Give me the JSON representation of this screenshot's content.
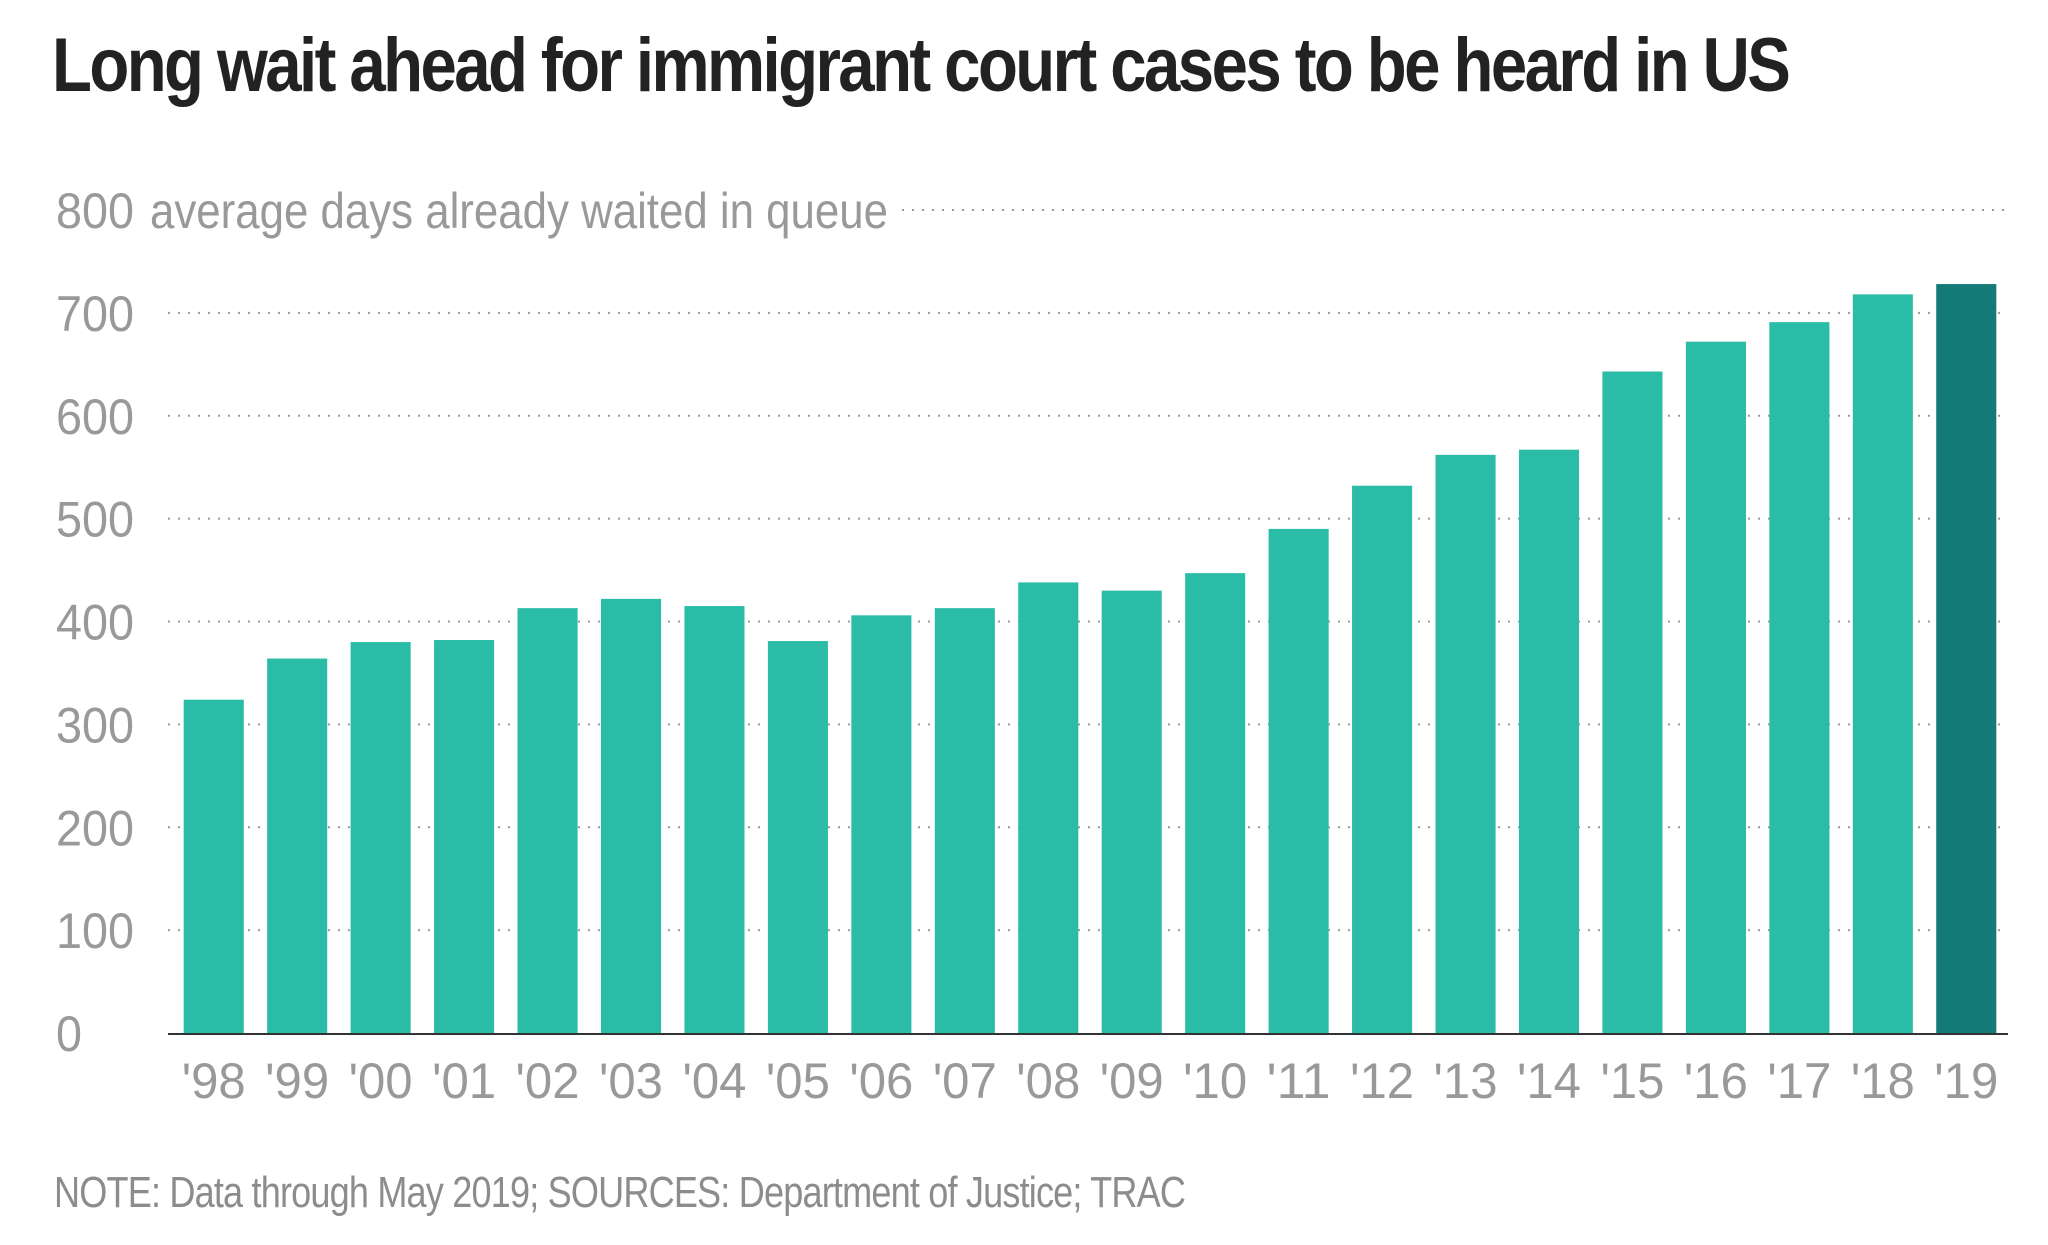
{
  "title": "Long wait ahead for immigrant court cases to be heard in US",
  "note": "NOTE: Data through May 2019; SOURCES: Department of Justice; TRAC",
  "colors": {
    "bar": "#2bbca8",
    "highlight": "#147a78",
    "text": "#222222",
    "muted": "#999999"
  },
  "chart_data": {
    "type": "bar",
    "title": "Long wait ahead for immigrant court cases to be heard in US",
    "ylabel": "average days already waited in queue",
    "xlabel": "",
    "ylim": [
      0,
      800
    ],
    "yticks": [
      0,
      100,
      200,
      300,
      400,
      500,
      600,
      700,
      800
    ],
    "grid": true,
    "categories": [
      "'98",
      "'99",
      "'00",
      "'01",
      "'02",
      "'03",
      "'04",
      "'05",
      "'06",
      "'07",
      "'08",
      "'09",
      "'10",
      "'11",
      "'12",
      "'13",
      "'14",
      "'15",
      "'16",
      "'17",
      "'18",
      "'19"
    ],
    "values": [
      324,
      364,
      380,
      382,
      413,
      422,
      415,
      381,
      406,
      413,
      438,
      430,
      447,
      490,
      532,
      562,
      567,
      643,
      672,
      691,
      718,
      728
    ],
    "highlight_index": 21
  }
}
